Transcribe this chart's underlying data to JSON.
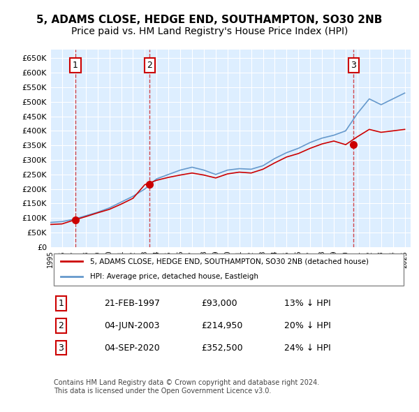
{
  "title": "5, ADAMS CLOSE, HEDGE END, SOUTHAMPTON, SO30 2NB",
  "subtitle": "Price paid vs. HM Land Registry's House Price Index (HPI)",
  "title_fontsize": 11,
  "subtitle_fontsize": 10,
  "background_color": "#ffffff",
  "plot_bg_color": "#ddeeff",
  "grid_color": "#ffffff",
  "ylim": [
    0,
    680000
  ],
  "yticks": [
    0,
    50000,
    100000,
    150000,
    200000,
    250000,
    300000,
    350000,
    400000,
    450000,
    500000,
    550000,
    600000,
    650000
  ],
  "ytick_labels": [
    "£0",
    "£50K",
    "£100K",
    "£150K",
    "£200K",
    "£250K",
    "£300K",
    "£350K",
    "£400K",
    "£450K",
    "£500K",
    "£550K",
    "£600K",
    "£650K"
  ],
  "sale_dates": [
    1997.12,
    2003.42,
    2020.67
  ],
  "sale_prices": [
    93000,
    214950,
    352500
  ],
  "sale_labels": [
    "1",
    "2",
    "3"
  ],
  "legend_entries": [
    "5, ADAMS CLOSE, HEDGE END, SOUTHAMPTON, SO30 2NB (detached house)",
    "HPI: Average price, detached house, Eastleigh"
  ],
  "legend_colors": [
    "#cc0000",
    "#6699cc"
  ],
  "table_rows": [
    [
      "1",
      "21-FEB-1997",
      "£93,000",
      "13% ↓ HPI"
    ],
    [
      "2",
      "04-JUN-2003",
      "£214,950",
      "20% ↓ HPI"
    ],
    [
      "3",
      "04-SEP-2020",
      "£352,500",
      "24% ↓ HPI"
    ]
  ],
  "footer_text": "Contains HM Land Registry data © Crown copyright and database right 2024.\nThis data is licensed under the Open Government Licence v3.0.",
  "hpi_years": [
    1995,
    1996,
    1997,
    1998,
    1999,
    2000,
    2001,
    2002,
    2003,
    2004,
    2005,
    2006,
    2007,
    2008,
    2009,
    2010,
    2011,
    2012,
    2013,
    2014,
    2015,
    2016,
    2017,
    2018,
    2019,
    2020,
    2021,
    2022,
    2023,
    2024,
    2025
  ],
  "hpi_values": [
    85000,
    88000,
    96000,
    108000,
    120000,
    135000,
    155000,
    175000,
    200000,
    235000,
    250000,
    265000,
    275000,
    265000,
    250000,
    265000,
    270000,
    268000,
    280000,
    305000,
    325000,
    340000,
    360000,
    375000,
    385000,
    400000,
    460000,
    510000,
    490000,
    510000,
    530000
  ],
  "price_years": [
    1995,
    1996,
    1997,
    1998,
    1999,
    2000,
    2001,
    2002,
    2003,
    2004,
    2005,
    2006,
    2007,
    2008,
    2009,
    2010,
    2011,
    2012,
    2013,
    2014,
    2015,
    2016,
    2017,
    2018,
    2019,
    2020,
    2021,
    2022,
    2023,
    2024,
    2025
  ],
  "price_values": [
    78000,
    80000,
    93000,
    105000,
    118000,
    130000,
    148000,
    168000,
    214950,
    230000,
    240000,
    248000,
    255000,
    248000,
    238000,
    252000,
    258000,
    255000,
    268000,
    290000,
    310000,
    322000,
    340000,
    355000,
    365000,
    352500,
    380000,
    405000,
    395000,
    400000,
    405000
  ]
}
